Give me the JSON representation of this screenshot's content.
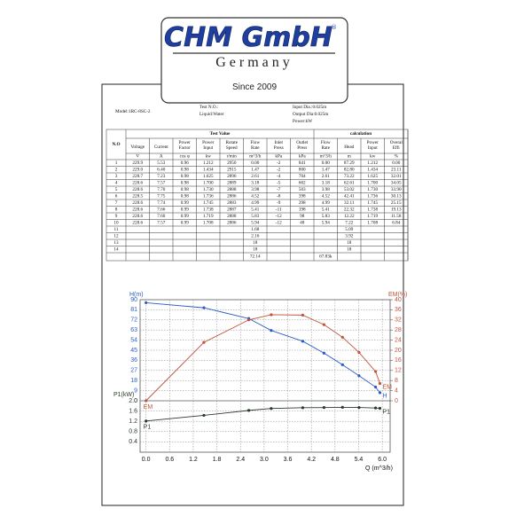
{
  "logo": {
    "brand": "CHM GmbH",
    "mark": "®",
    "country": "Germany",
    "since": "Since 2009"
  },
  "header": {
    "model": "Model:1RC-8SC-2",
    "test_no": "Test N.O.:",
    "liquid": "Liquid:Water",
    "input_dia": "Input Dia.:0.025m",
    "output_dia": "Output Dia:0.025m",
    "power": "Power:kW"
  },
  "table": {
    "no_header": "N.O",
    "group_headers": [
      "Test Value",
      "calculation"
    ],
    "columns": [
      {
        "name": [
          "Voltage"
        ],
        "unit": "V"
      },
      {
        "name": [
          "Current"
        ],
        "unit": "A"
      },
      {
        "name": [
          "Power",
          "Factor"
        ],
        "unit": "cos φ"
      },
      {
        "name": [
          "Power",
          "Input"
        ],
        "unit": "kw"
      },
      {
        "name": [
          "Rotate",
          "Speed"
        ],
        "unit": "r/min"
      },
      {
        "name": [
          "Flow",
          "Rate"
        ],
        "unit": "m^3/h"
      },
      {
        "name": [
          "Inlet",
          "Press"
        ],
        "unit": "kPa"
      },
      {
        "name": [
          "Outlet",
          "Press"
        ],
        "unit": "kPa"
      },
      {
        "name": [
          "Flow",
          "Rate"
        ],
        "unit": "m^3/h"
      },
      {
        "name": [
          "Head"
        ],
        "unit": "m"
      },
      {
        "name": [
          "Power",
          "Input"
        ],
        "unit": "kw"
      },
      {
        "name": [
          "Overal",
          "Effi"
        ],
        "unit": "%"
      }
    ],
    "rows": [
      [
        "1",
        "229.9",
        "5.53",
        "0.96",
        "1.212",
        "2950",
        "0.00",
        "-2",
        "841",
        "0.00",
        "87.29",
        "1.212",
        "0.00"
      ],
      [
        "2",
        "229.0",
        "6.40",
        "0.98",
        "1.434",
        "2915",
        "1.47",
        "-2",
        "800",
        "1.47",
        "82.80",
        "1.434",
        "23.11"
      ],
      [
        "3",
        "228.7",
        "7.23",
        "0.98",
        "1.625",
        "2896",
        "2.61",
        "-4",
        "704",
        "2.61",
        "73.22",
        "1.625",
        "32.01"
      ],
      [
        "4",
        "228.6",
        "7.57",
        "0.98",
        "1.700",
        "2889",
        "3.18",
        "-5",
        "602",
        "3.18",
        "62.61",
        "1.700",
        "34.05"
      ],
      [
        "5",
        "228.6",
        "7.70",
        "0.98",
        "1.730",
        "2888",
        "3.98",
        "-7",
        "503",
        "3.98",
        "53.02",
        "1.730",
        "33.90"
      ],
      [
        "6",
        "228.5",
        "7.75",
        "0.98",
        "1.736",
        "2886",
        "4.52",
        "-8",
        "398",
        "4.52",
        "42.41",
        "1.736",
        "30.13"
      ],
      [
        "7",
        "228.6",
        "7.74",
        "0.99",
        "1.745",
        "2883",
        "4.99",
        "-9",
        "298",
        "4.99",
        "32.11",
        "1.745",
        "25.15"
      ],
      [
        "8",
        "228.6",
        "7.66",
        "0.99",
        "1.738",
        "2887",
        "5.41",
        "-11",
        "198",
        "5.41",
        "22.32",
        "1.738",
        "19.13"
      ],
      [
        "9",
        "228.6",
        "7.60",
        "0.99",
        "1.719",
        "2888",
        "5.83",
        "-12",
        "98",
        "5.83",
        "12.22",
        "1.719",
        "11.58"
      ],
      [
        "10",
        "228.6",
        "7.57",
        "0.99",
        "1.708",
        "2886",
        "5.94",
        "-12",
        "48",
        "5.94",
        "7.22",
        "1.708",
        "6.84"
      ],
      [
        "11",
        null,
        null,
        null,
        null,
        null,
        "1.68",
        null,
        null,
        null,
        "5.09",
        null,
        null
      ],
      [
        "12",
        null,
        null,
        null,
        null,
        null,
        "2.16",
        null,
        null,
        null,
        "3.92",
        null,
        null
      ],
      [
        "13",
        null,
        null,
        null,
        null,
        null,
        "18",
        null,
        null,
        null,
        "18",
        null,
        null
      ],
      [
        "14",
        null,
        null,
        null,
        null,
        null,
        "18",
        null,
        null,
        null,
        "18",
        null,
        null
      ]
    ],
    "totals": [
      null,
      null,
      null,
      null,
      null,
      null,
      "72.14",
      null,
      null,
      "67.83k",
      null,
      null,
      null
    ]
  },
  "chart_data": {
    "type": "line",
    "y_label": "H(m)",
    "y2_label": "EM(%)",
    "y3_label": "P1(kW)",
    "x_label": "Q (m^3/h)",
    "x": [
      0,
      1.47,
      2.61,
      3.18,
      3.98,
      4.52,
      4.99,
      5.41,
      5.83,
      5.94
    ],
    "xlim": [
      -0.15,
      6.2
    ],
    "xticks": [
      {
        "value": 0,
        "label": "0.0"
      },
      0.6,
      1.2,
      1.8,
      2.4,
      {
        "value": 3,
        "label": "3.0"
      },
      3.6,
      4.2,
      4.8,
      5.4,
      {
        "value": 6,
        "label": "6.0"
      }
    ],
    "ylim": [
      0,
      90
    ],
    "yticks": [
      0,
      9,
      18,
      27,
      36,
      45,
      54,
      63,
      72,
      81,
      90
    ],
    "y2lim": [
      0,
      40
    ],
    "y2ticks": [
      0,
      4,
      8,
      12,
      16,
      20,
      24,
      28,
      32,
      36,
      40
    ],
    "y3lim": [
      0,
      2
    ],
    "y3ticks": [
      0.4,
      0.8,
      1.2,
      1.6,
      {
        "value": 2,
        "label": "2.0"
      }
    ],
    "grid": true,
    "series": [
      {
        "name": "H",
        "color": "#2a5cc4",
        "axis": "y",
        "values": [
          87.29,
          82.8,
          73.22,
          62.61,
          53.02,
          42.41,
          32.11,
          22.32,
          12.22,
          7.22
        ]
      },
      {
        "name": "EM",
        "color": "#c2533a",
        "axis": "y2",
        "values": [
          0,
          23.11,
          32.01,
          34.05,
          33.9,
          30.13,
          25.15,
          19.13,
          11.58,
          6.84
        ]
      },
      {
        "name": "P1",
        "color": "#2b3a2b",
        "axis": "y3",
        "values": [
          1.212,
          1.434,
          1.625,
          1.7,
          1.73,
          1.736,
          1.745,
          1.738,
          1.719,
          1.708
        ]
      }
    ]
  }
}
